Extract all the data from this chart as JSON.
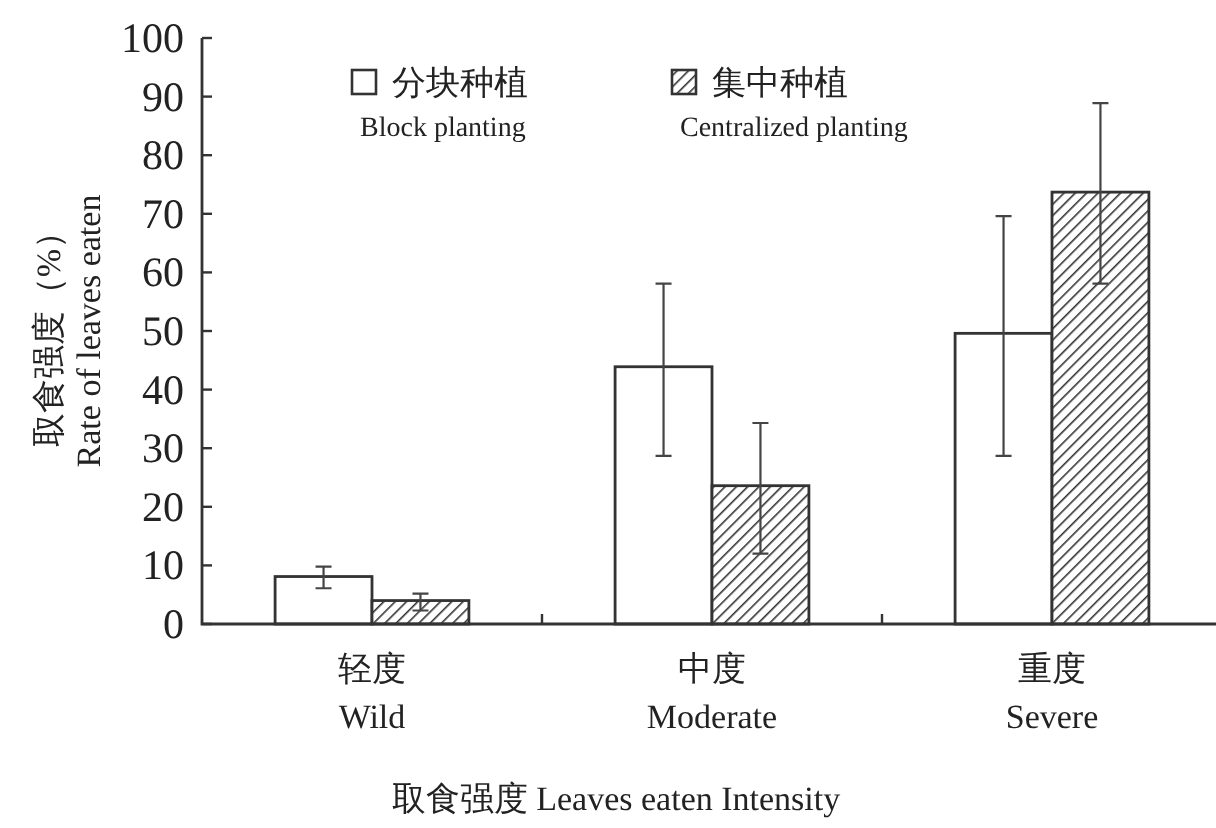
{
  "chart_data": {
    "type": "bar",
    "xlabel": "取食强度 Leaves eaten Intensity",
    "ylabel": "取食强度（%） Rate of leaves eaten",
    "categories": [
      "轻度 Wild",
      "中度 Moderate",
      "重度 Severe"
    ],
    "ylim": [
      0,
      100
    ],
    "yticks": [
      0,
      10,
      20,
      30,
      40,
      50,
      60,
      70,
      80,
      90,
      100
    ],
    "legend": "top",
    "series": [
      {
        "name": "分块种植 Block planting",
        "color": "#ffffff",
        "values": [
          8.1,
          43.9,
          49.6
        ],
        "errors": [
          [
            6.1,
            9.8
          ],
          [
            28.7,
            58.1
          ],
          [
            28.7,
            69.6
          ]
        ]
      },
      {
        "name": "集中种植 Centralized planting",
        "color": "#333333",
        "values": [
          4.0,
          23.6,
          73.7
        ],
        "errors": [
          [
            2.3,
            5.2
          ],
          [
            12.0,
            34.3
          ],
          [
            58.1,
            88.9
          ]
        ]
      }
    ]
  }
}
